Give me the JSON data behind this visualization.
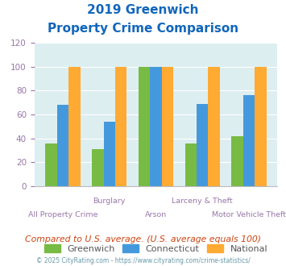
{
  "title_line1": "2019 Greenwich",
  "title_line2": "Property Crime Comparison",
  "categories": [
    "All Property Crime",
    "Burglary",
    "Arson",
    "Larceny & Theft",
    "Motor Vehicle Theft"
  ],
  "greenwich": [
    36,
    31,
    100,
    36,
    42
  ],
  "connecticut": [
    68,
    54,
    100,
    69,
    76
  ],
  "national": [
    100,
    100,
    100,
    100,
    100
  ],
  "color_greenwich": "#77bb44",
  "color_connecticut": "#4499dd",
  "color_national": "#ffaa33",
  "color_title": "#1166bb",
  "color_xlabel": "#9977aa",
  "color_tick": "#9977aa",
  "color_note": "#cc4411",
  "color_copyright": "#6699aa",
  "color_bg": "#ddeef0",
  "ylim": [
    0,
    120
  ],
  "yticks": [
    0,
    20,
    40,
    60,
    80,
    100,
    120
  ],
  "note": "Compared to U.S. average. (U.S. average equals 100)",
  "copyright": "© 2025 CityRating.com - https://www.cityrating.com/crime-statistics/",
  "top_labels": [
    "",
    "Burglary",
    "",
    "Larceny & Theft",
    ""
  ],
  "bottom_labels": [
    "All Property Crime",
    "",
    "Arson",
    "",
    "Motor Vehicle Theft"
  ]
}
